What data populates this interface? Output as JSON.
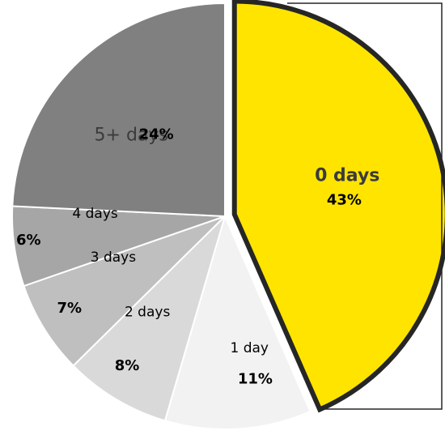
{
  "chart_data": {
    "type": "pie",
    "title": "",
    "slices": [
      {
        "label": "0 days",
        "value": 43,
        "value_label": "43%",
        "color": "#FFE400",
        "emphasized": true
      },
      {
        "label": "1 day",
        "value": 11,
        "value_label": "11%",
        "color": "#F2F2F2",
        "emphasized": false
      },
      {
        "label": "2 days",
        "value": 8,
        "value_label": "8%",
        "color": "#D9D9D9",
        "emphasized": false
      },
      {
        "label": "3 days",
        "value": 7,
        "value_label": "7%",
        "color": "#BFBFBF",
        "emphasized": false
      },
      {
        "label": "4 days",
        "value": 6,
        "value_label": "6%",
        "color": "#A6A6A6",
        "emphasized": false
      },
      {
        "label": "5+ days",
        "value": 24,
        "value_label": "24%",
        "color": "#808080",
        "emphasized": false
      }
    ],
    "legend": "none",
    "start_angle": "12 o'clock",
    "direction": "clockwise"
  }
}
